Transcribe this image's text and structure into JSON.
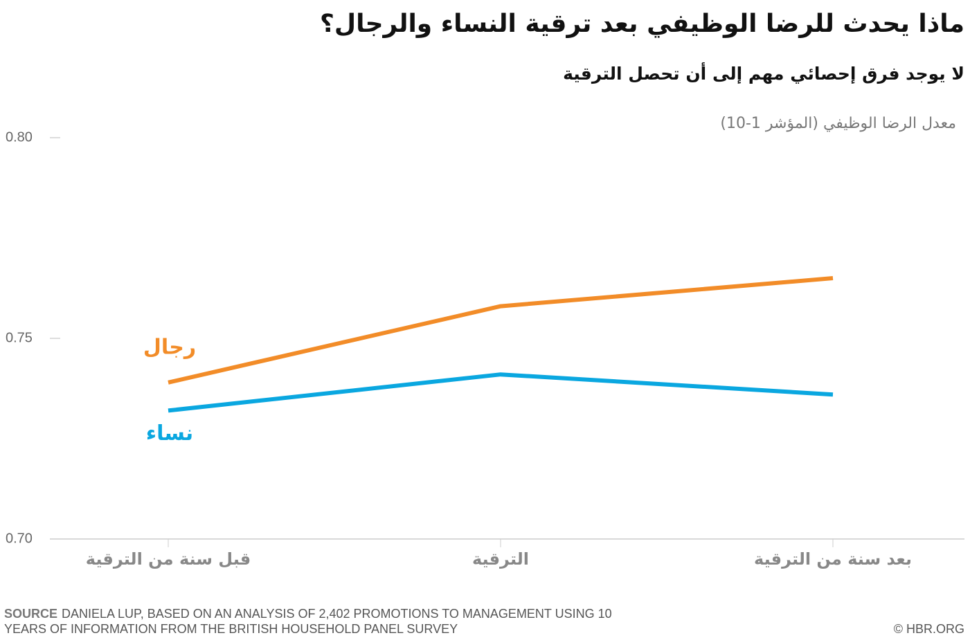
{
  "chart_data": {
    "type": "line",
    "title": "ماذا يحدث للرضا الوظيفي بعد ترقية النساء والرجال؟",
    "subtitle": "لا يوجد فرق إحصائي مهم إلى أن تحصل الترقية",
    "y_label": "معدل الرضا الوظيفي (المؤشر 1-10)",
    "categories": [
      "قبل سنة من الترقية",
      "الترقية",
      "بعد سنة من الترقية"
    ],
    "series": [
      {
        "name": "رجال",
        "color": "#f28c28",
        "values": [
          0.739,
          0.758,
          0.765
        ]
      },
      {
        "name": "نساء",
        "color": "#0aa7e0",
        "values": [
          0.732,
          0.741,
          0.736
        ]
      }
    ],
    "ylim": [
      0.7,
      0.8
    ],
    "yticks": [
      {
        "value": 0.7,
        "label": "0.70"
      },
      0.75,
      {
        "value": 0.8,
        "label": "0.80"
      }
    ],
    "source_label": "SOURCE",
    "source": "DANIELA LUP, BASED ON AN ANALYSIS OF 2,402 PROMOTIONS TO MANAGEMENT USING 10 YEARS OF INFORMATION FROM THE BRITISH HOUSEHOLD PANEL SURVEY",
    "credit": "© HBR.ORG"
  }
}
